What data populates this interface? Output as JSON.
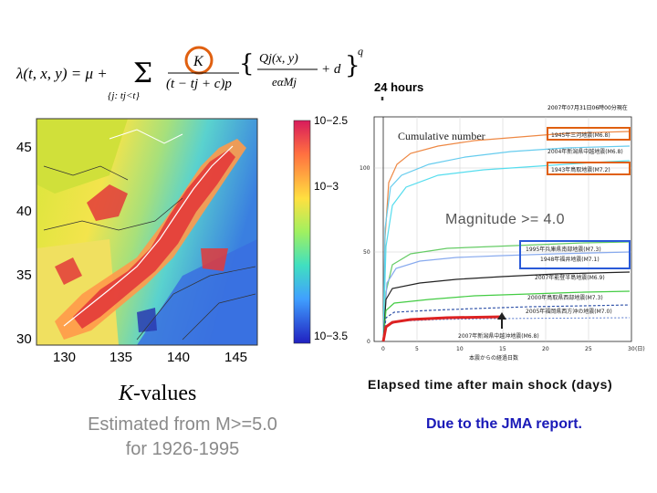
{
  "formula": {
    "lambda_expr": "λ(t, x, y) = μ +",
    "sum_symbol": "Σ",
    "sum_sub": "{j: tj<t}",
    "numer": "K",
    "denom": "(t − tj + c)p",
    "q_numer": "Qj(x, y)",
    "q_denom": "eαMj",
    "plus_d": "+ d",
    "exp_q": "q",
    "highlight_color": "#e06010"
  },
  "kmap": {
    "y_ticks": [
      "45",
      "40",
      "35",
      "30"
    ],
    "x_ticks": [
      "130",
      "135",
      "140",
      "145"
    ],
    "colorbar_ticks": [
      "10−2.5",
      "10−3",
      "10−3.5"
    ]
  },
  "cumulative": {
    "arrow_label": "24 hours",
    "header": "2007年07月31日06時00分現在",
    "inner_label": "Cumulative number",
    "magnitude_label": "Magnitude >= 4.0",
    "y_ticks": [
      "100",
      "50",
      "0"
    ],
    "x_ticks": [
      "0",
      "5",
      "10",
      "15",
      "20",
      "25",
      "30"
    ],
    "x_unit": "(日)",
    "x_axis_label": "本震からの経過日数",
    "orange_box_color": "#e06010",
    "blue_box_color": "#2a5ad8",
    "legend": [
      "1945年三河地震(M6.8)",
      "2004年新潟県中越地震(M6.8)",
      "1943年鳥取地震(M7.2)",
      "1995年兵庫県南部地震(M7.3)",
      "1948年福井地震(M7.1)",
      "2007年能登半島地震(M6.9)",
      "2000年鳥取県西部地震(M7.3)",
      "2005年福岡県西方沖の地震(M7.0)",
      "2007年新潟県中越沖地震(M6.8)"
    ]
  },
  "captions": {
    "k_symbol": "K",
    "k_text": "-values",
    "estimated_line1": "Estimated from M>=5.0",
    "estimated_line2": "for 1926-1995",
    "elapsed": "Elapsed time after main shock (days)",
    "jma": "Due to the JMA report."
  }
}
